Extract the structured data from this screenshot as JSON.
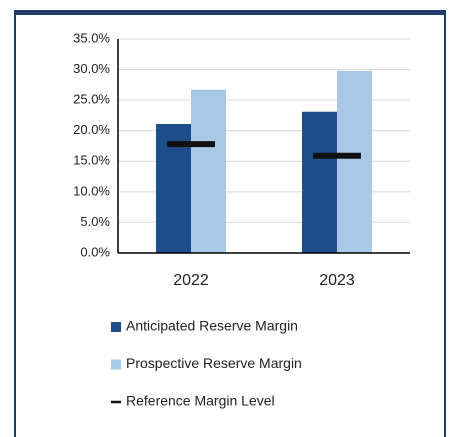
{
  "chart_data": {
    "type": "bar",
    "categories": [
      "2022",
      "2023"
    ],
    "series": [
      {
        "name": "Anticipated Reserve Margin",
        "color": "#1f4e8c",
        "kind": "bar",
        "values": [
          21.1,
          23.1
        ]
      },
      {
        "name": "Prospective Reserve Margin",
        "color": "#a9c8e6",
        "kind": "bar",
        "values": [
          26.7,
          29.8
        ]
      },
      {
        "name": "Reference Margin Level",
        "color": "#111111",
        "kind": "dash",
        "values": [
          17.8,
          15.9
        ]
      }
    ],
    "ylim": [
      0,
      35
    ],
    "yticks": [
      {
        "value": 0,
        "label": "0.0%"
      },
      {
        "value": 5,
        "label": "5.0%"
      },
      {
        "value": 10,
        "label": "10.0%"
      },
      {
        "value": 15,
        "label": "15.0%"
      },
      {
        "value": 20,
        "label": "20.0%"
      },
      {
        "value": 25,
        "label": "25.0%"
      },
      {
        "value": 30,
        "label": "30.0%"
      },
      {
        "value": 35,
        "label": "35.0%"
      }
    ],
    "grid": true
  }
}
